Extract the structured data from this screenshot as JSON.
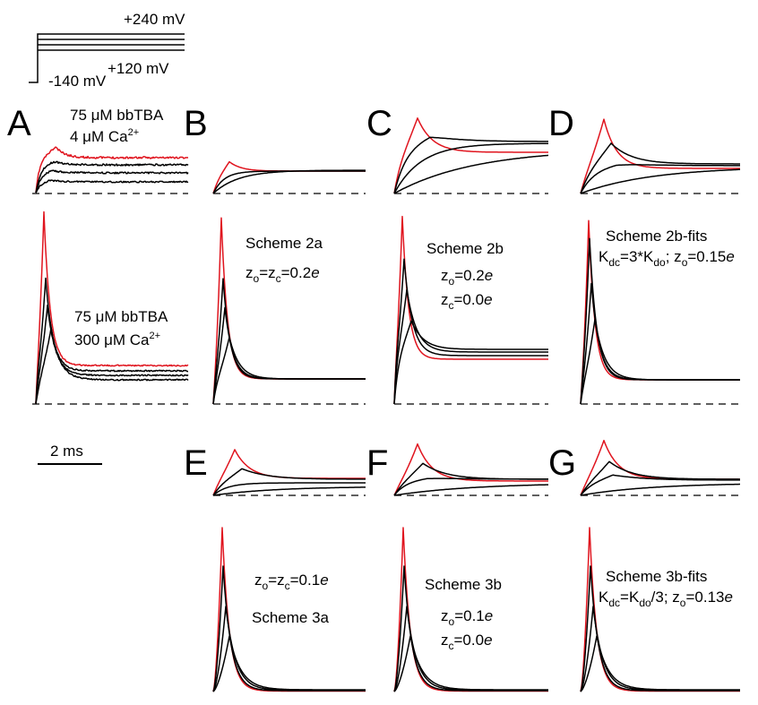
{
  "voltage_protocol": {
    "top_label": "+240 mV",
    "mid_label": "+120 mV",
    "hold_label": "-140 mV"
  },
  "scale_bar": {
    "label": "2 ms"
  },
  "panels": {
    "A": "A",
    "B": "B",
    "C": "C",
    "D": "D",
    "E": "E",
    "F": "F",
    "G": "G"
  },
  "annotations": {
    "A_top_1": "75 μM bbTBA",
    "A_top_2_pre": "4 μM Ca",
    "A_top_2_sup": "2+",
    "A_bot_1": "75 μM bbTBA",
    "A_bot_2_pre": "300 μM Ca",
    "A_bot_2_sup": "2+",
    "B_name": "Scheme 2a",
    "B_z_1": "z",
    "B_z_1_sub": "o",
    "B_z_eq": "=z",
    "B_z_2_sub": "c",
    "B_z_val": "=0.2",
    "B_z_e": "e",
    "C_name": "Scheme 2b",
    "C_zo": "z",
    "C_zo_sub": "o",
    "C_zo_val": "=0.2",
    "C_zo_e": "e",
    "C_zc": "z",
    "C_zc_sub": "c",
    "C_zc_val": "=0.0",
    "C_zc_e": "e",
    "D_name": "Scheme 2b-fits",
    "D_l2_a": "K",
    "D_l2_a_sub": "dc",
    "D_l2_b": "=3*K",
    "D_l2_b_sub": "do",
    "D_l2_c": "; z",
    "D_l2_c_sub": "o",
    "D_l2_d": "=0.15",
    "D_l2_e": "e",
    "E_z_1": "z",
    "E_z_1_sub": "o",
    "E_z_eq": "=z",
    "E_z_2_sub": "c",
    "E_z_val": "=0.1",
    "E_z_e": "e",
    "E_name": "Scheme 3a",
    "F_name": "Scheme 3b",
    "F_zo": "z",
    "F_zo_sub": "o",
    "F_zo_val": "=0.1",
    "F_zo_e": "e",
    "F_zc": "z",
    "F_zc_sub": "c",
    "F_zc_val": "=0.0",
    "F_zc_e": "e",
    "G_name": "Scheme 3b-fits",
    "G_l2_a": "K",
    "G_l2_a_sub": "dc",
    "G_l2_b": "=K",
    "G_l2_b_sub": "do",
    "G_l2_c": "/3; z",
    "G_l2_c_sub": "o",
    "G_l2_d": "=0.13",
    "G_l2_e": "e"
  },
  "colors": {
    "highlight_trace": "#e0141e",
    "trace": "#000000"
  }
}
